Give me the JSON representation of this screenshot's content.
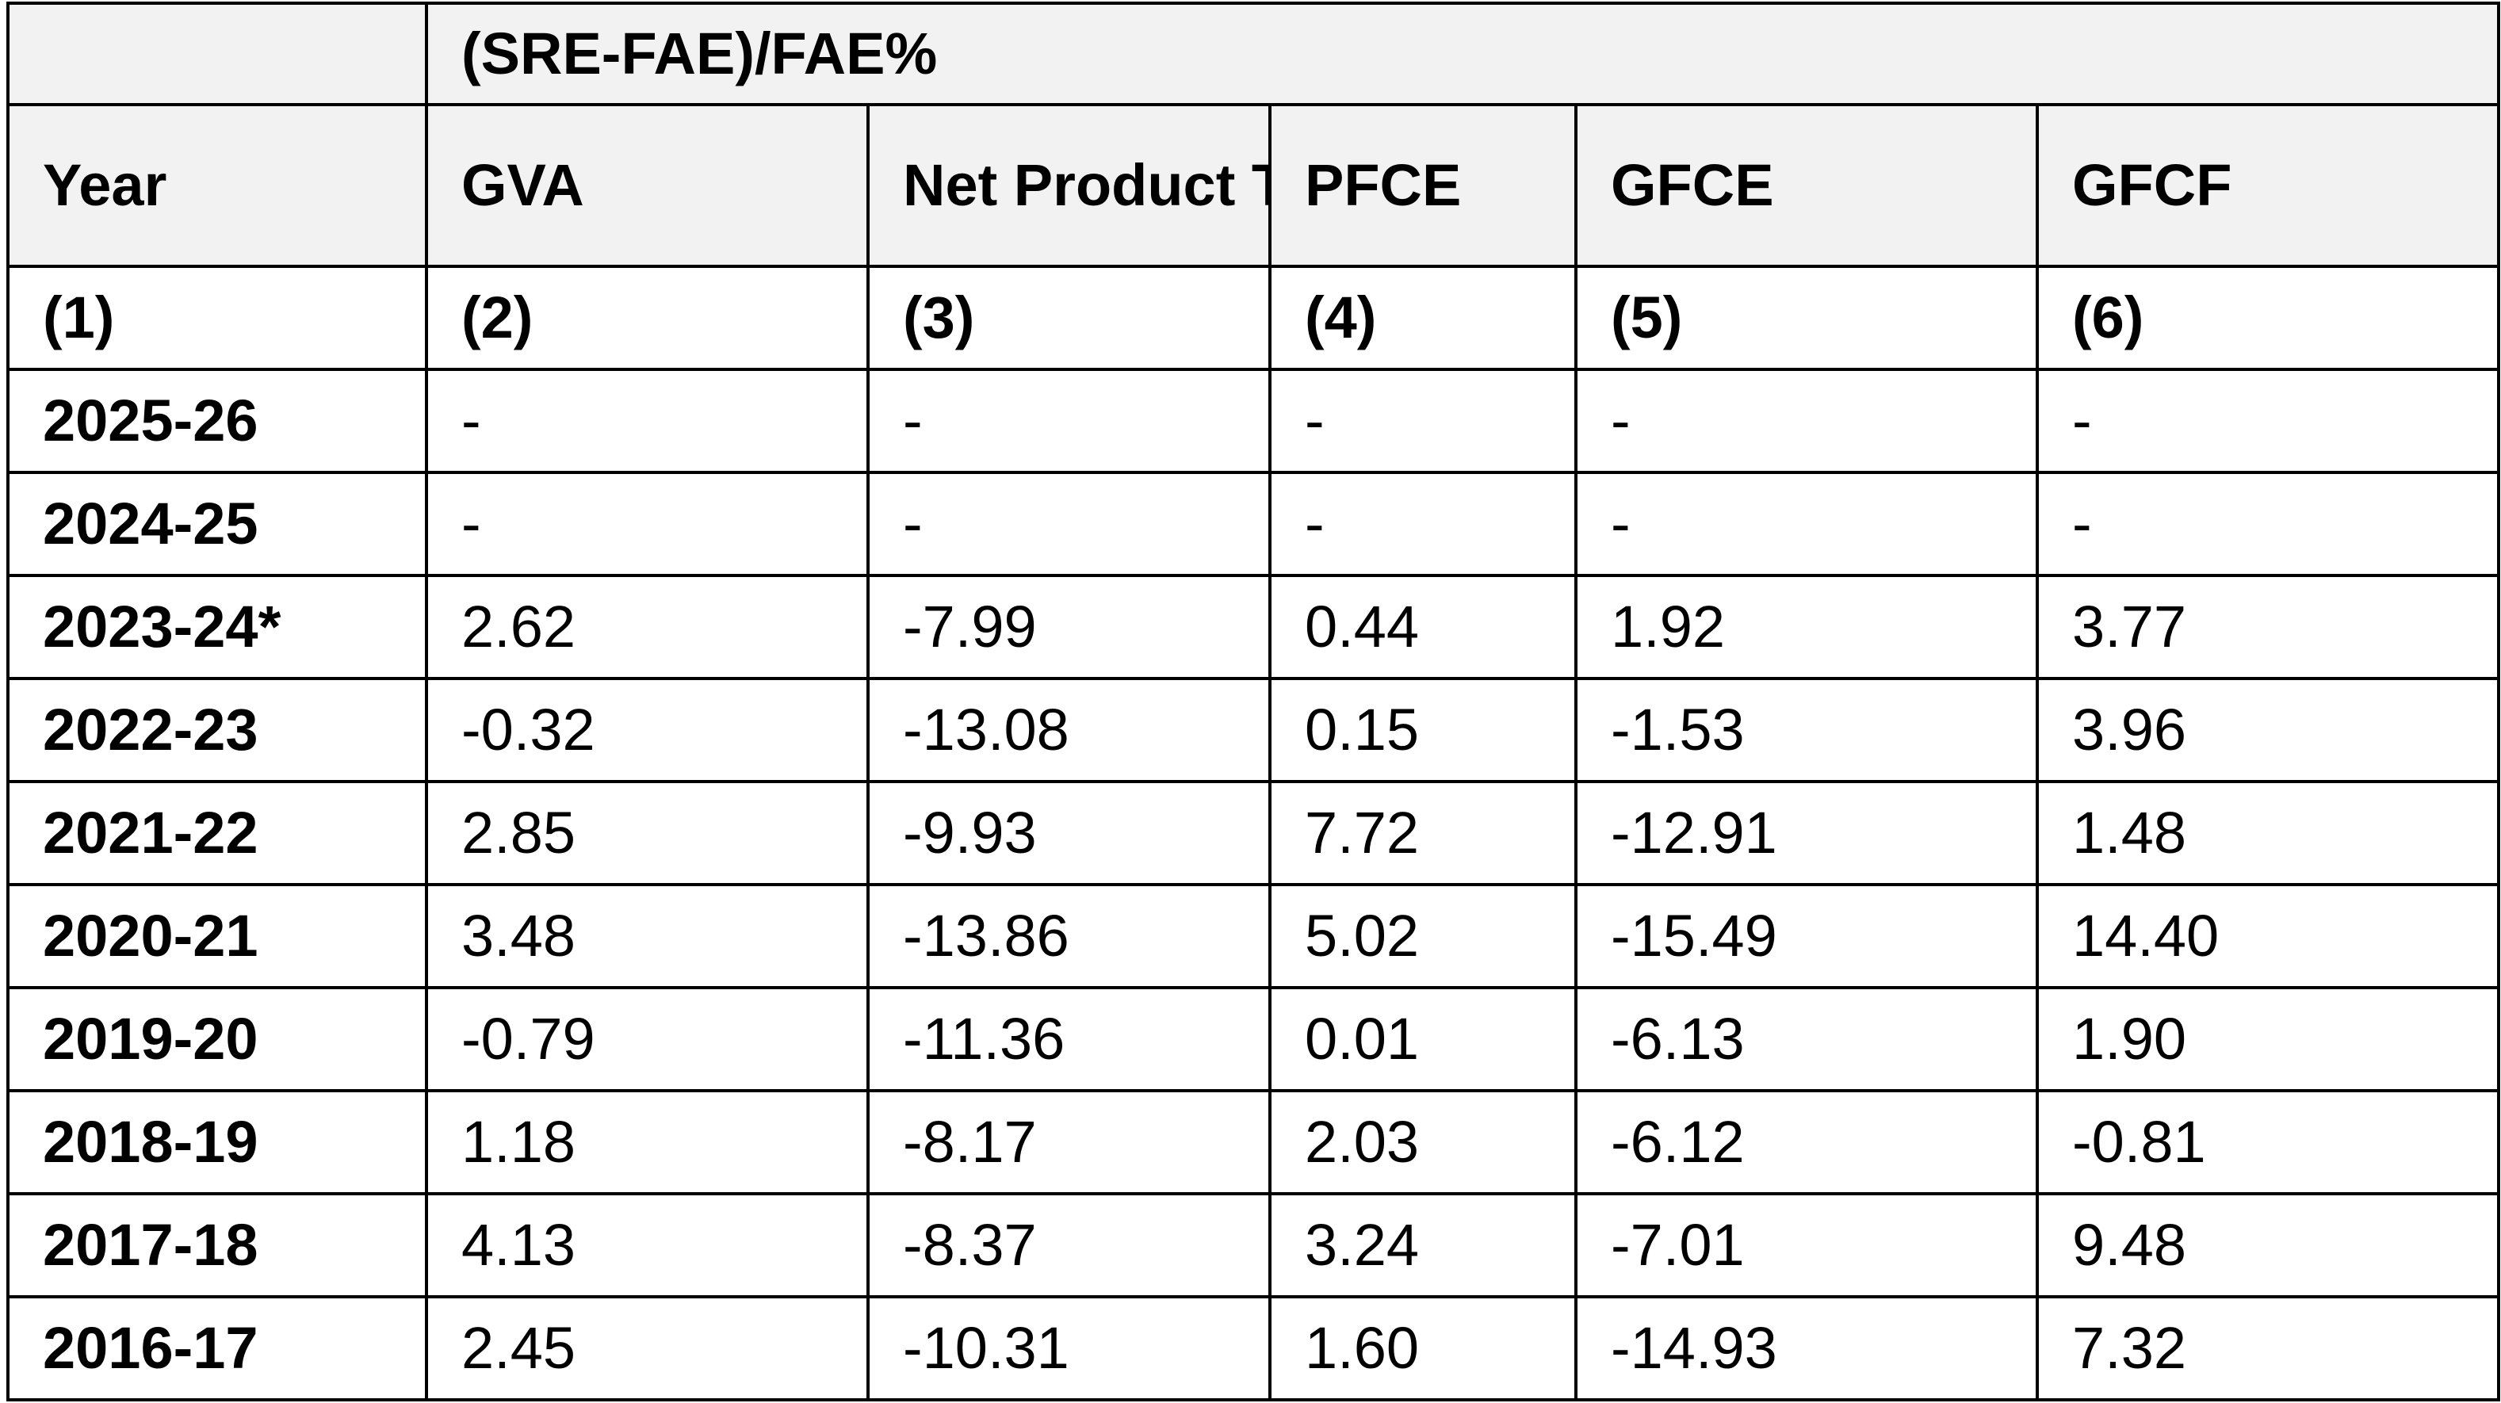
{
  "table": {
    "group_header": "(SRE-FAE)/FAE%",
    "columns": [
      "Year",
      "GVA",
      "Net Product Taxes",
      "PFCE",
      "GFCE",
      "GFCF"
    ],
    "column_numbers": [
      "(1)",
      "(2)",
      "(3)",
      "(4)",
      "(5)",
      "(6)"
    ],
    "rows": [
      {
        "year": "2025-26",
        "values": [
          "-",
          "-",
          "-",
          "-",
          "-"
        ]
      },
      {
        "year": "2024-25",
        "values": [
          "-",
          "-",
          "-",
          "-",
          "-"
        ]
      },
      {
        "year": "2023-24*",
        "values": [
          "2.62",
          "-7.99",
          "0.44",
          "1.92",
          "3.77"
        ]
      },
      {
        "year": "2022-23",
        "values": [
          "-0.32",
          "-13.08",
          "0.15",
          "-1.53",
          "3.96"
        ]
      },
      {
        "year": "2021-22",
        "values": [
          "2.85",
          "-9.93",
          "7.72",
          "-12.91",
          "1.48"
        ]
      },
      {
        "year": "2020-21",
        "values": [
          "3.48",
          "-13.86",
          "5.02",
          "-15.49",
          "14.40"
        ]
      },
      {
        "year": "2019-20",
        "values": [
          "-0.79",
          "-11.36",
          "0.01",
          "-6.13",
          "1.90"
        ]
      },
      {
        "year": "2018-19",
        "values": [
          "1.18",
          "-8.17",
          "2.03",
          "-6.12",
          "-0.81"
        ]
      },
      {
        "year": "2017-18",
        "values": [
          "4.13",
          "-8.37",
          "3.24",
          "-7.01",
          "9.48"
        ]
      },
      {
        "year": "2016-17",
        "values": [
          "2.45",
          "-10.31",
          "1.60",
          "-14.93",
          "7.32"
        ]
      }
    ]
  },
  "colors": {
    "header_background": "#f2f2f2",
    "border": "#000000",
    "text": "#000000"
  }
}
